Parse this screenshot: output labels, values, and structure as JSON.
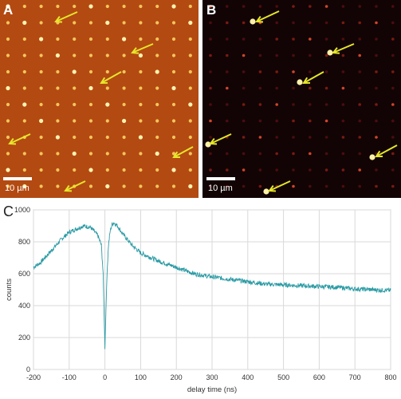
{
  "panels": {
    "A": {
      "label": "A",
      "scale_bar": "10 µm"
    },
    "B": {
      "label": "B",
      "scale_bar": "10 µm"
    },
    "C": {
      "label": "C"
    }
  },
  "colors": {
    "panel_a_bg": "#b34a12",
    "panel_b_bg": "#120405",
    "arrow": "#e6e62a",
    "trace": "#2a9aa4"
  },
  "chart_data": {
    "type": "line",
    "xlabel": "delay time (ns)",
    "ylabel": "counts",
    "xlim": [
      -200,
      800
    ],
    "ylim": [
      0,
      1000
    ],
    "xticks": [
      -200,
      -100,
      0,
      100,
      200,
      300,
      400,
      500,
      600,
      700,
      800
    ],
    "yticks": [
      0,
      200,
      400,
      600,
      800,
      1000
    ],
    "grid": true,
    "series": [
      {
        "x": [
          -200,
          -180,
          -160,
          -140,
          -120,
          -100,
          -80,
          -60,
          -40,
          -20,
          -10,
          -5,
          0,
          3,
          6,
          10,
          15,
          20,
          25,
          35,
          50,
          75,
          100,
          150,
          200,
          250,
          300,
          350,
          400,
          450,
          500,
          550,
          600,
          650,
          700,
          750,
          800
        ],
        "values": [
          640,
          670,
          720,
          770,
          820,
          860,
          880,
          900,
          890,
          840,
          780,
          600,
          130,
          380,
          600,
          780,
          870,
          910,
          920,
          900,
          850,
          780,
          730,
          680,
          640,
          600,
          580,
          565,
          550,
          535,
          530,
          525,
          520,
          515,
          505,
          500,
          495
        ]
      }
    ]
  }
}
